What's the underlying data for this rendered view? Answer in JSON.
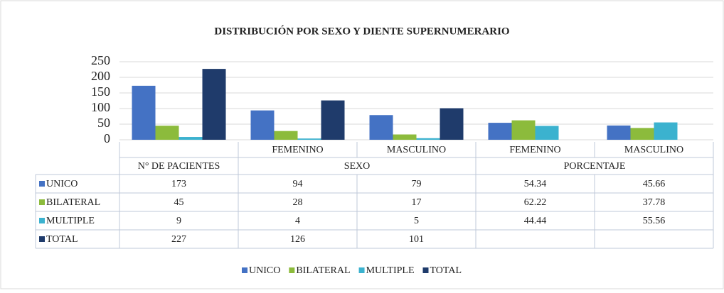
{
  "chart_data": {
    "type": "bar",
    "title": "DISTRIBUCIÓN POR SEXO Y DIENTE SUPERNUMERARIO",
    "categories": [
      null,
      "FEMENINO",
      "MASCULINO",
      "FEMENINO",
      "MASCULINO"
    ],
    "groups": [
      {
        "label": "N° DE PACIENTES",
        "span": 1
      },
      {
        "label": "SEXO",
        "span": 2
      },
      {
        "label": "PORCENTAJE",
        "span": 2
      }
    ],
    "series": [
      {
        "name": "UNICO",
        "color": "#4472c4",
        "values": [
          173,
          94,
          79,
          54.34,
          45.66
        ]
      },
      {
        "name": "BILATERAL",
        "color": "#8cbb3c",
        "values": [
          45,
          28,
          17,
          62.22,
          37.78
        ]
      },
      {
        "name": "MULTIPLE",
        "color": "#3bb2cf",
        "values": [
          9,
          4,
          5,
          44.44,
          55.56
        ]
      },
      {
        "name": "TOTAL",
        "color": "#1f3b6b",
        "values": [
          227,
          126,
          101,
          null,
          null
        ]
      }
    ],
    "ylim": [
      0,
      250
    ],
    "yticks": [
      0,
      50,
      100,
      150,
      200,
      250
    ],
    "grid": true,
    "legend": "bottom"
  }
}
